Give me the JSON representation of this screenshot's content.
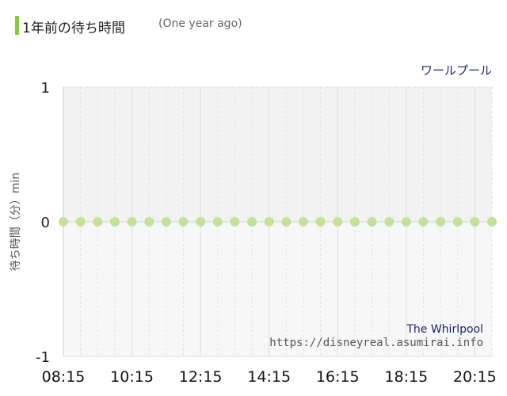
{
  "header": {
    "title": "1年前の待ち時間",
    "subtitle": "(One year ago)",
    "accent_color": "#8cc63f"
  },
  "attraction_name": "ワールプール",
  "watermark": {
    "name": "The Whirlpool",
    "url": "https://disneyreal.asumirai.info"
  },
  "chart_data": {
    "type": "scatter",
    "ylabel": "待ち時間（分）min",
    "ylim": [
      -1,
      1
    ],
    "y_ticks": [
      "1",
      "0",
      "-1"
    ],
    "x_tick_labels": [
      "08:15",
      "10:15",
      "12:15",
      "14:15",
      "16:15",
      "18:15",
      "20:15"
    ],
    "x": [
      "08:15",
      "08:45",
      "09:15",
      "09:45",
      "10:15",
      "10:45",
      "11:15",
      "11:45",
      "12:15",
      "12:45",
      "13:15",
      "13:45",
      "14:15",
      "14:45",
      "15:15",
      "15:45",
      "16:15",
      "16:45",
      "17:15",
      "17:45",
      "18:15",
      "18:45",
      "19:15",
      "19:45",
      "20:15",
      "20:45"
    ],
    "values": [
      0,
      0,
      0,
      0,
      0,
      0,
      0,
      0,
      0,
      0,
      0,
      0,
      0,
      0,
      0,
      0,
      0,
      0,
      0,
      0,
      0,
      0,
      0,
      0,
      0,
      0
    ],
    "point_color": "#c5e09a",
    "grid": true
  }
}
